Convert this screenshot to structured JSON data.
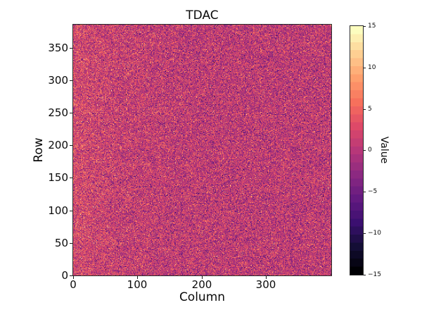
{
  "chart_data": {
    "type": "heatmap",
    "title": "TDAC",
    "xlabel": "Column",
    "ylabel": "Row",
    "x_range": [
      0,
      400
    ],
    "y_range": [
      0,
      384
    ],
    "x_ticks": [
      "0",
      "100",
      "200",
      "300"
    ],
    "y_ticks": [
      "0",
      "50",
      "100",
      "150",
      "200",
      "250",
      "300",
      "350"
    ],
    "grid": false,
    "origin": "lower",
    "colorbar": {
      "label": "Value",
      "ticks": [
        "15",
        "10",
        "5",
        "0",
        "−5",
        "−10",
        "−15"
      ],
      "vmin": -15,
      "vmax": 15,
      "levels": 31,
      "position": "right"
    },
    "colormap": {
      "name": "magma",
      "stops": [
        "#000004",
        "#140e36",
        "#3b0f70",
        "#641a80",
        "#8c2981",
        "#b73779",
        "#de4968",
        "#f7705c",
        "#fe9f6d",
        "#fecf92",
        "#fcfdbf"
      ]
    },
    "values_summary": {
      "description": "per-pixel integer TDAC trim values; random gaussian-like noise centered near 0, slightly warmer (higher) in leftmost ~100 columns",
      "rows": 384,
      "cols": 400,
      "mean_base": 0.5,
      "mean_left_boost": 2.0,
      "mean_decay_cols": 75,
      "sigma": 3.6,
      "clip": [
        -15,
        15
      ],
      "seed": 42
    },
    "styling": {
      "background": "#ffffff",
      "spine_color": "#2a2a2a",
      "text_color": "#0a0a0a"
    }
  }
}
